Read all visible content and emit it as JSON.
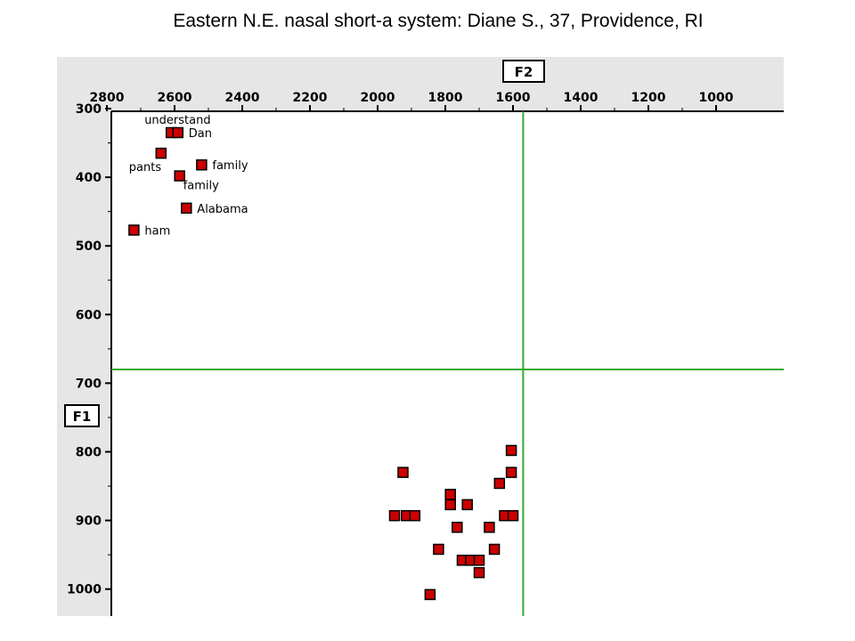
{
  "title": "Eastern N.E. nasal short-a system: Diane S., 37, Providence, RI",
  "colors": {
    "panel": "#e6e6e6",
    "point": "#cc0000",
    "guide": "#33aa33"
  },
  "chart_data": {
    "type": "scatter",
    "title": "Eastern N.E. nasal short-a system: Diane S., 37, Providence, RI",
    "xlabel": "F2",
    "ylabel": "F1",
    "x_reversed": true,
    "y_reversed": true,
    "xlim": [
      2800,
      900
    ],
    "ylim": [
      300,
      1040
    ],
    "xticks": [
      2800,
      2600,
      2400,
      2200,
      2000,
      1800,
      1600,
      1400,
      1200,
      1000
    ],
    "yticks": [
      300,
      400,
      500,
      600,
      700,
      800,
      900,
      1000
    ],
    "reference_lines": {
      "F2": 1570,
      "F1": 680
    },
    "points": [
      {
        "label": "understand",
        "x": 2610,
        "y": 335
      },
      {
        "label": "Dan",
        "x": 2590,
        "y": 335
      },
      {
        "label": "pants",
        "x": 2640,
        "y": 365
      },
      {
        "label": "family",
        "x": 2520,
        "y": 382
      },
      {
        "label": "family",
        "x": 2585,
        "y": 398
      },
      {
        "label": "Alabama",
        "x": 2565,
        "y": 445
      },
      {
        "label": "ham",
        "x": 2720,
        "y": 477
      },
      {
        "label": "",
        "x": 1925,
        "y": 830
      },
      {
        "label": "",
        "x": 1950,
        "y": 893
      },
      {
        "label": "",
        "x": 1915,
        "y": 893
      },
      {
        "label": "",
        "x": 1890,
        "y": 893
      },
      {
        "label": "",
        "x": 1845,
        "y": 1008
      },
      {
        "label": "",
        "x": 1820,
        "y": 942
      },
      {
        "label": "",
        "x": 1785,
        "y": 862
      },
      {
        "label": "",
        "x": 1785,
        "y": 877
      },
      {
        "label": "",
        "x": 1765,
        "y": 910
      },
      {
        "label": "",
        "x": 1735,
        "y": 877
      },
      {
        "label": "",
        "x": 1750,
        "y": 958
      },
      {
        "label": "",
        "x": 1725,
        "y": 958
      },
      {
        "label": "",
        "x": 1700,
        "y": 958
      },
      {
        "label": "",
        "x": 1700,
        "y": 976
      },
      {
        "label": "",
        "x": 1670,
        "y": 910
      },
      {
        "label": "",
        "x": 1655,
        "y": 942
      },
      {
        "label": "",
        "x": 1640,
        "y": 846
      },
      {
        "label": "",
        "x": 1625,
        "y": 893
      },
      {
        "label": "",
        "x": 1600,
        "y": 893
      },
      {
        "label": "",
        "x": 1605,
        "y": 798
      },
      {
        "label": "",
        "x": 1605,
        "y": 830
      }
    ]
  }
}
